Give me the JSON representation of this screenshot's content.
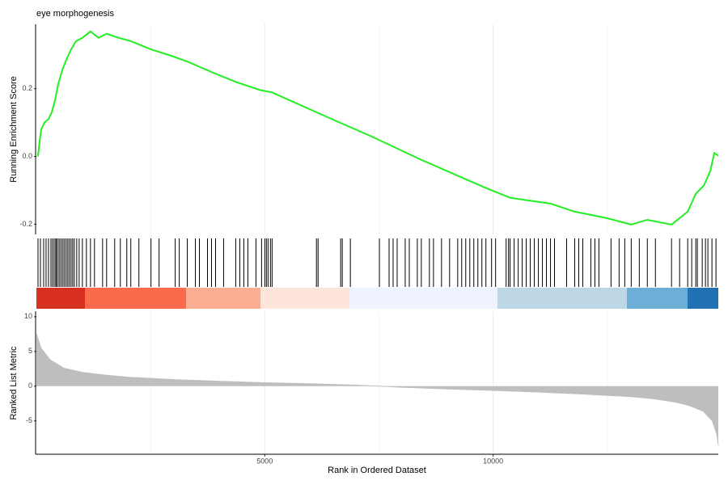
{
  "chart_data": [
    {
      "type": "line",
      "title": "eye morphogenesis",
      "y_label": "Running Enrichment Score",
      "color": "#22ee22",
      "x": [
        35,
        71,
        106,
        177,
        265,
        336,
        406,
        477,
        565,
        654,
        760,
        866,
        1007,
        1184,
        1360,
        1537,
        1802,
        2067,
        2509,
        2951,
        3304,
        3834,
        4364,
        4895,
        5160,
        6220,
        7368,
        8428,
        9312,
        9842,
        10372,
        11255,
        11785,
        12493,
        13023,
        13376,
        13907,
        14260,
        14437,
        14614,
        14755,
        14843,
        14930
      ],
      "values": [
        0.0,
        0.045,
        0.08,
        0.1,
        0.11,
        0.13,
        0.165,
        0.213,
        0.254,
        0.285,
        0.316,
        0.34,
        0.35,
        0.369,
        0.35,
        0.362,
        0.35,
        0.34,
        0.316,
        0.297,
        0.28,
        0.249,
        0.22,
        0.196,
        0.189,
        0.125,
        0.057,
        -0.01,
        -0.062,
        -0.093,
        -0.122,
        -0.139,
        -0.163,
        -0.182,
        -0.201,
        -0.187,
        -0.201,
        -0.163,
        -0.11,
        -0.086,
        -0.043,
        0.01,
        0.002
      ],
      "xlim": [
        0,
        14930
      ],
      "ylim": [
        -0.23,
        0.39
      ],
      "yticks": [
        -0.2,
        {
          "value": 0,
          "label": "0.0"
        },
        0.2
      ],
      "grid": true
    },
    {
      "type": "rug",
      "color": "#000000",
      "x": [
        35,
        88,
        159,
        212,
        265,
        318,
        353,
        389,
        424,
        442,
        477,
        512,
        548,
        583,
        618,
        654,
        689,
        724,
        760,
        795,
        830,
        883,
        936,
        1007,
        1095,
        1184,
        1272,
        1449,
        1537,
        1714,
        1838,
        1979,
        2067,
        2244,
        2509,
        2686,
        3039,
        3128,
        3304,
        3481,
        3569,
        3746,
        3834,
        3923,
        4099,
        4364,
        4453,
        4541,
        4630,
        4807,
        4930,
        5001,
        5036,
        5072,
        5124,
        5160,
        6131,
        6167,
        6662,
        6697,
        6874,
        7510,
        7722,
        7810,
        7899,
        8075,
        8164,
        8340,
        8428,
        8605,
        8694,
        8870,
        9047,
        9224,
        9312,
        9400,
        9489,
        9577,
        9666,
        9754,
        9842,
        9966,
        10054,
        10284,
        10337,
        10372,
        10460,
        10549,
        10637,
        10725,
        10814,
        10902,
        10991,
        11079,
        11167,
        11256,
        11344,
        11609,
        11786,
        11874,
        11963,
        12139,
        12228,
        12316,
        12581,
        12758,
        12882,
        13023,
        13200,
        13376,
        13553,
        13906,
        14083,
        14260,
        14348,
        14437,
        14472,
        14578,
        14649,
        14702,
        14791,
        14879
      ],
      "xlim": [
        0,
        14930
      ]
    },
    {
      "type": "area",
      "x_label": "Rank in Ordered Dataset",
      "y_label": "Ranked List Metric",
      "color": "#bebebe",
      "x": [
        1,
        100,
        300,
        600,
        1000,
        1500,
        2000,
        3000,
        4000,
        5000,
        6000,
        7000,
        7500,
        8000,
        9000,
        10000,
        11000,
        12000,
        13000,
        13500,
        14000,
        14300,
        14600,
        14800,
        14900,
        14930
      ],
      "values": [
        7.5,
        5.5,
        3.8,
        2.6,
        2.0,
        1.6,
        1.3,
        0.95,
        0.7,
        0.5,
        0.35,
        0.15,
        0.0,
        -0.15,
        -0.4,
        -0.6,
        -0.85,
        -1.15,
        -1.5,
        -1.8,
        -2.3,
        -2.8,
        -3.6,
        -5,
        -7,
        -8.5
      ],
      "xlim": [
        0,
        14930
      ],
      "ylim": [
        -9.8,
        10.8
      ],
      "xticks": [
        5000,
        10000
      ],
      "yticks": [
        -5,
        0,
        5,
        10
      ],
      "grid": true
    }
  ]
}
